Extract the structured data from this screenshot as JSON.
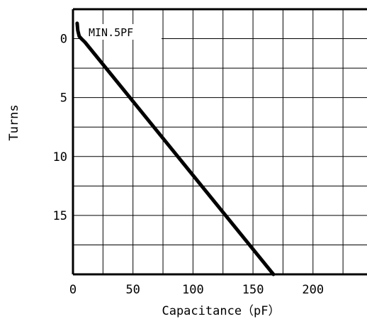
{
  "chart_data": {
    "type": "line",
    "xlabel": "Capacitance（pF）",
    "ylabel": "Turns",
    "xlim": [
      0,
      245
    ],
    "ylim": [
      20,
      -2.5
    ],
    "x_ticks": [
      0,
      50,
      100,
      150,
      200
    ],
    "y_ticks": [
      0,
      5,
      10,
      15
    ],
    "x_grid": [
      0,
      25,
      50,
      75,
      100,
      125,
      150,
      175,
      200,
      225
    ],
    "y_grid": [
      0,
      2.5,
      5,
      7.5,
      10,
      12.5,
      15,
      17.5,
      20
    ],
    "grid": true,
    "annotation": "MIN.5PF",
    "series": [
      {
        "color": "#000000",
        "x": [
          3.5,
          4.0,
          5.2,
          7.0,
          10.0,
          167.0
        ],
        "y": [
          -1.3,
          -0.7,
          -0.2,
          0.0,
          0.3,
          20.0
        ]
      }
    ]
  }
}
